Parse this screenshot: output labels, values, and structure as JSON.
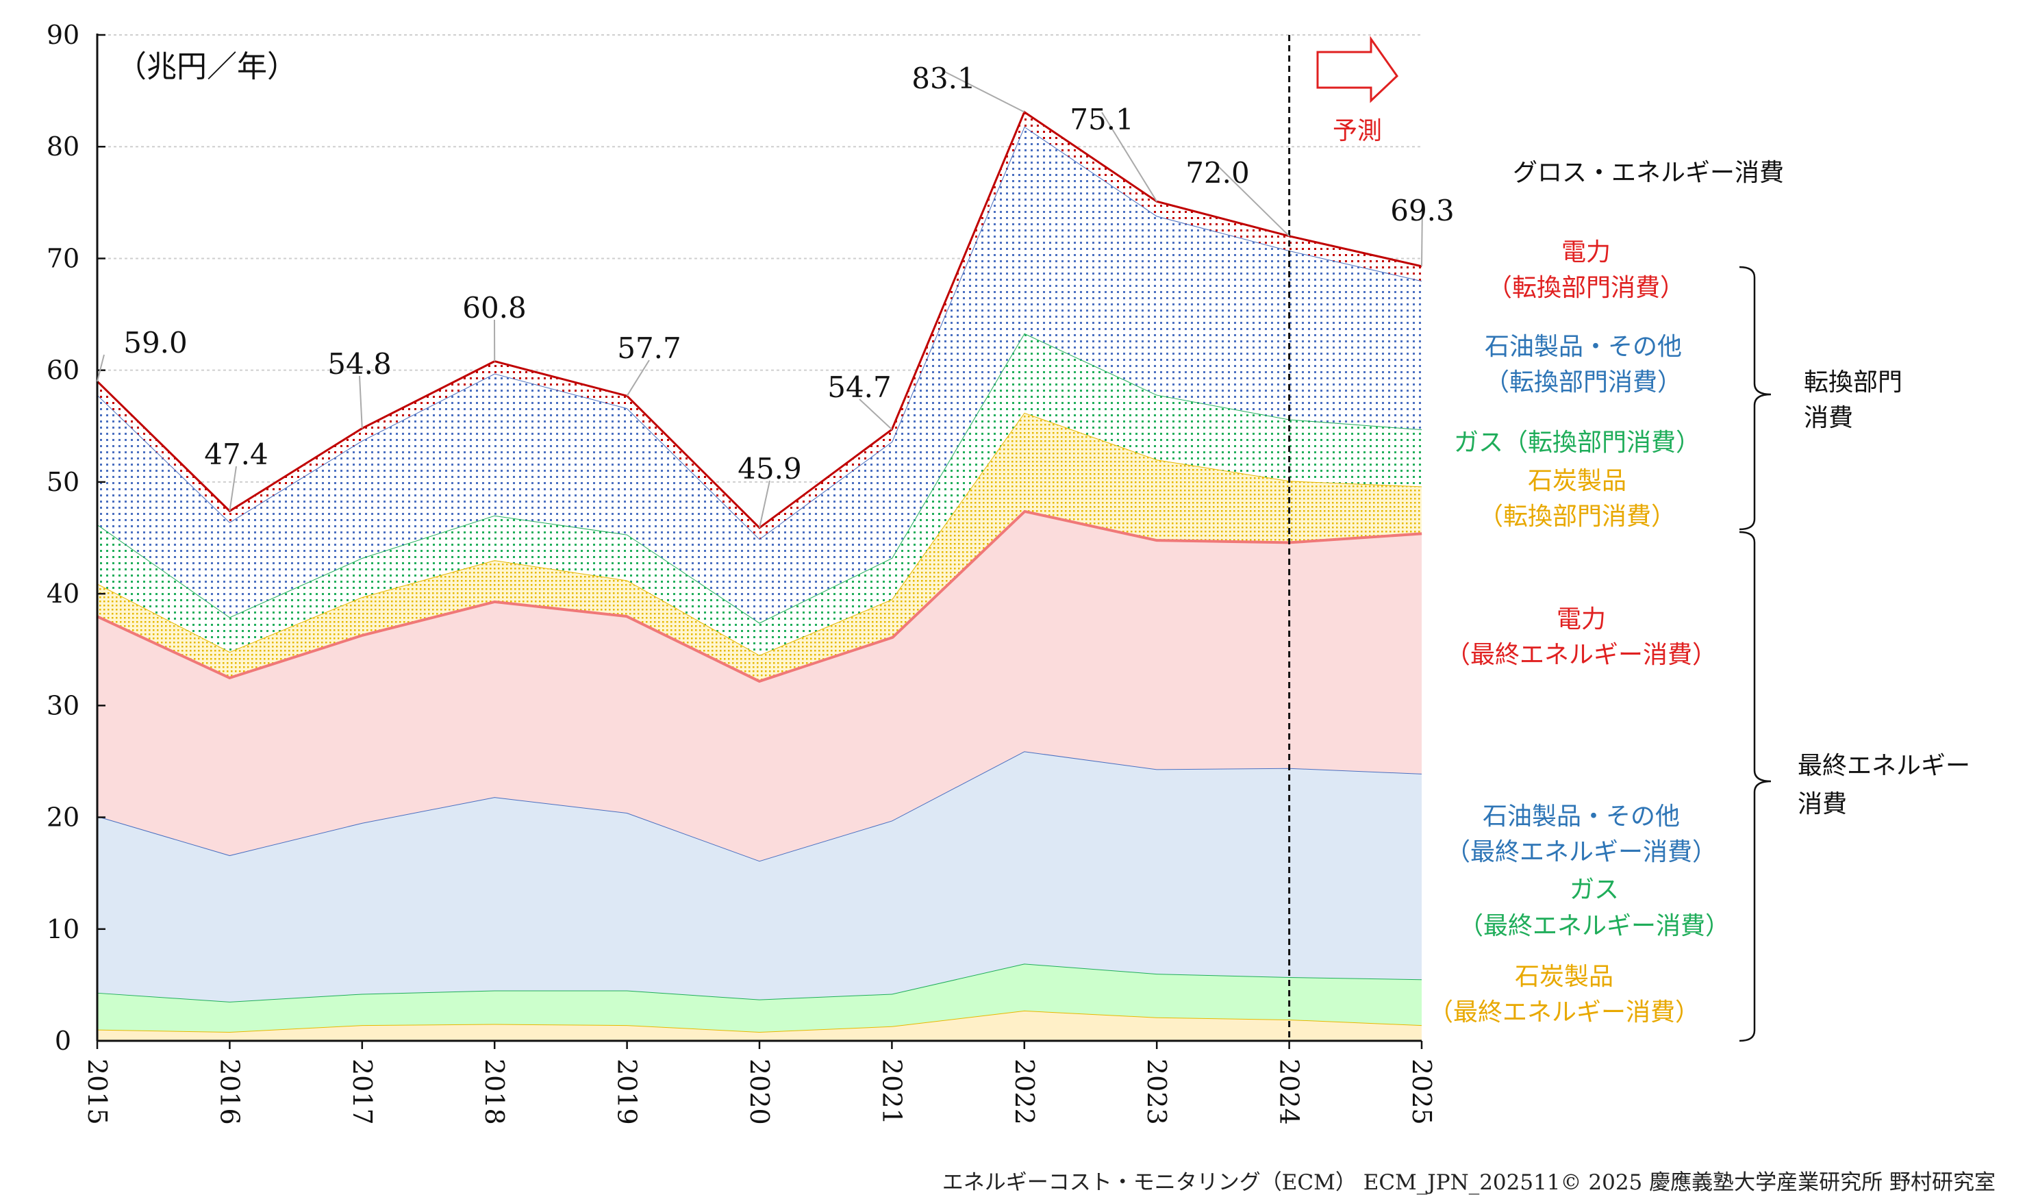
{
  "chart_data": {
    "type": "area",
    "stacked": true,
    "unit_label": "（兆円／年）",
    "categories": [
      "2015",
      "2016",
      "2017",
      "2018",
      "2019",
      "2020",
      "2021",
      "2022",
      "2023",
      "2024",
      "2025"
    ],
    "ylim": [
      0,
      90
    ],
    "yticks": [
      "0",
      "10",
      "20",
      "30",
      "40",
      "50",
      "60",
      "70",
      "80",
      "90"
    ],
    "grid": true,
    "series": [
      {
        "name": "石炭製品（最終エネルギー消費）",
        "color": "#e6b800",
        "fill": "#fff0c8",
        "values": [
          1.0,
          0.8,
          1.4,
          1.5,
          1.4,
          0.8,
          1.3,
          2.7,
          2.1,
          1.9,
          1.4
        ]
      },
      {
        "name": "ガス（最終エネルギー消費）",
        "color": "#1fad5a",
        "fill": "#ccffcc",
        "values": [
          3.3,
          2.7,
          2.8,
          3.0,
          3.1,
          2.9,
          2.9,
          4.2,
          3.9,
          3.8,
          4.1
        ]
      },
      {
        "name": "石油製品・その他（最終エネルギー消費）",
        "color": "#4a6fc0",
        "fill": "#dde8f5",
        "values": [
          15.8,
          13.1,
          15.3,
          17.3,
          15.9,
          12.4,
          15.5,
          19.0,
          18.3,
          18.7,
          18.4
        ]
      },
      {
        "name": "電力（最終エネルギー消費）",
        "color": "#f07878",
        "fill": "#fbdcdc",
        "values": [
          18.0,
          16.0,
          16.9,
          17.6,
          17.7,
          16.2,
          16.5,
          21.6,
          20.6,
          20.3,
          21.6
        ]
      },
      {
        "name": "石炭製品（転換部門消費）",
        "color": "#e6b800",
        "fill": "pat-coal",
        "values": [
          2.8,
          2.2,
          3.3,
          3.6,
          3.1,
          2.2,
          3.3,
          8.7,
          7.1,
          5.4,
          4.1
        ]
      },
      {
        "name": "ガス（転換部門消費）",
        "color": "#1fad5a",
        "fill": "pat-gas",
        "values": [
          5.3,
          3.1,
          3.5,
          4.0,
          4.1,
          2.9,
          3.7,
          7.1,
          5.8,
          5.5,
          5.1
        ]
      },
      {
        "name": "石油製品・その他（転換部門消費）",
        "color": "#4a6fc0",
        "fill": "pat-oil",
        "values": [
          11.6,
          8.5,
          10.5,
          12.7,
          11.3,
          7.5,
          10.4,
          18.5,
          16.0,
          15.1,
          13.3
        ]
      },
      {
        "name": "電力（転換部門消費）",
        "color": "#c00000",
        "fill": "pat-elec",
        "values": [
          1.2,
          1.0,
          1.1,
          1.1,
          1.1,
          1.0,
          1.1,
          1.3,
          1.3,
          1.3,
          1.3
        ]
      }
    ],
    "totals": [
      "59.0",
      "47.4",
      "54.8",
      "60.8",
      "57.7",
      "45.9",
      "54.7",
      "83.1",
      "75.1",
      "72.0",
      "69.3"
    ],
    "forecast_from": "2024",
    "forecast_label": "予測"
  },
  "legend": {
    "gross": "グロス・エネルギー消費",
    "elec_t": [
      "電力",
      "（転換部門消費）"
    ],
    "oil_t": [
      "石油製品・その他",
      "（転換部門消費）"
    ],
    "gas_t": "ガス（転換部門消費）",
    "coal_t": [
      "石炭製品",
      "（転換部門消費）"
    ],
    "elec_f": [
      "電力",
      "（最終エネルギー消費）"
    ],
    "oil_f": [
      "石油製品・その他",
      "（最終エネルギー消費）"
    ],
    "gas_f": [
      "ガス",
      "（最終エネルギー消費）"
    ],
    "coal_f": [
      "石炭製品",
      "（最終エネルギー消費）"
    ],
    "group_conversion": [
      "転換部門",
      "消費"
    ],
    "group_final": [
      "最終エネルギー",
      "消費"
    ]
  },
  "footer": "エネルギーコスト・モニタリング（ECM） ECM_JPN_202511© 2025 慶應義塾大学産業研究所 野村研究室"
}
